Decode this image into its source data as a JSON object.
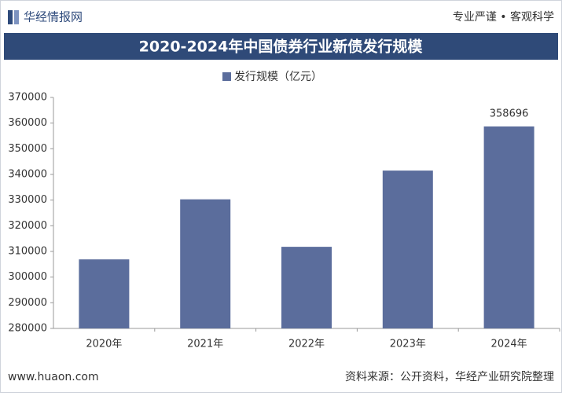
{
  "header": {
    "brand": "华经情报网",
    "slogan": "专业严谨 • 客观科学"
  },
  "chart_data": {
    "type": "bar",
    "title": "2020-2024年中国债券行业新债发行规模",
    "categories": [
      "2020年",
      "2021年",
      "2022年",
      "2023年",
      "2024年"
    ],
    "series": [
      {
        "name": "发行规模（亿元）",
        "color": "#5b6d9c",
        "values": [
          306900,
          330300,
          311800,
          341500,
          358696
        ]
      }
    ],
    "ylim": [
      280000,
      370000
    ],
    "yticks": [
      280000,
      290000,
      300000,
      310000,
      320000,
      330000,
      340000,
      350000,
      360000,
      370000
    ]
  },
  "footer": {
    "website": "www.huaon.com",
    "source": "资料来源：公开资料，华经产业研究院整理"
  }
}
